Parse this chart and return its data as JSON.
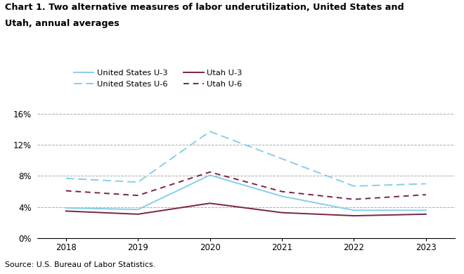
{
  "title_line1": "Chart 1. Two alternative measures of labor underutilization, United States and",
  "title_line2": "Utah, annual averages",
  "years": [
    2018,
    2019,
    2020,
    2021,
    2022,
    2023
  ],
  "us_u3": [
    3.9,
    3.7,
    8.1,
    5.4,
    3.6,
    3.6
  ],
  "us_u6": [
    7.7,
    7.2,
    13.7,
    10.2,
    6.7,
    7.0
  ],
  "utah_u3": [
    3.5,
    3.1,
    4.5,
    3.3,
    2.9,
    3.1
  ],
  "utah_u6": [
    6.1,
    5.5,
    8.5,
    6.0,
    5.0,
    5.6
  ],
  "us_color": "#87CEEB",
  "utah_color": "#7B2346",
  "source": "Source: U.S. Bureau of Labor Statistics.",
  "ylim": [
    0,
    16.5
  ],
  "yticks": [
    0,
    4,
    8,
    12,
    16
  ],
  "ytick_labels": [
    "0%",
    "4%",
    "8%",
    "12%",
    "16%"
  ],
  "grid_color": "#aaaaaa",
  "legend_items": [
    {
      "label": "United States U-3",
      "color": "#87CEEB",
      "ls": "solid"
    },
    {
      "label": "United States U-6",
      "color": "#87CEEB",
      "ls": "dashed"
    },
    {
      "label": "Utah U-3",
      "color": "#7B2346",
      "ls": "solid"
    },
    {
      "label": "Utah U-6",
      "color": "#7B2346",
      "ls": "dashed"
    }
  ]
}
